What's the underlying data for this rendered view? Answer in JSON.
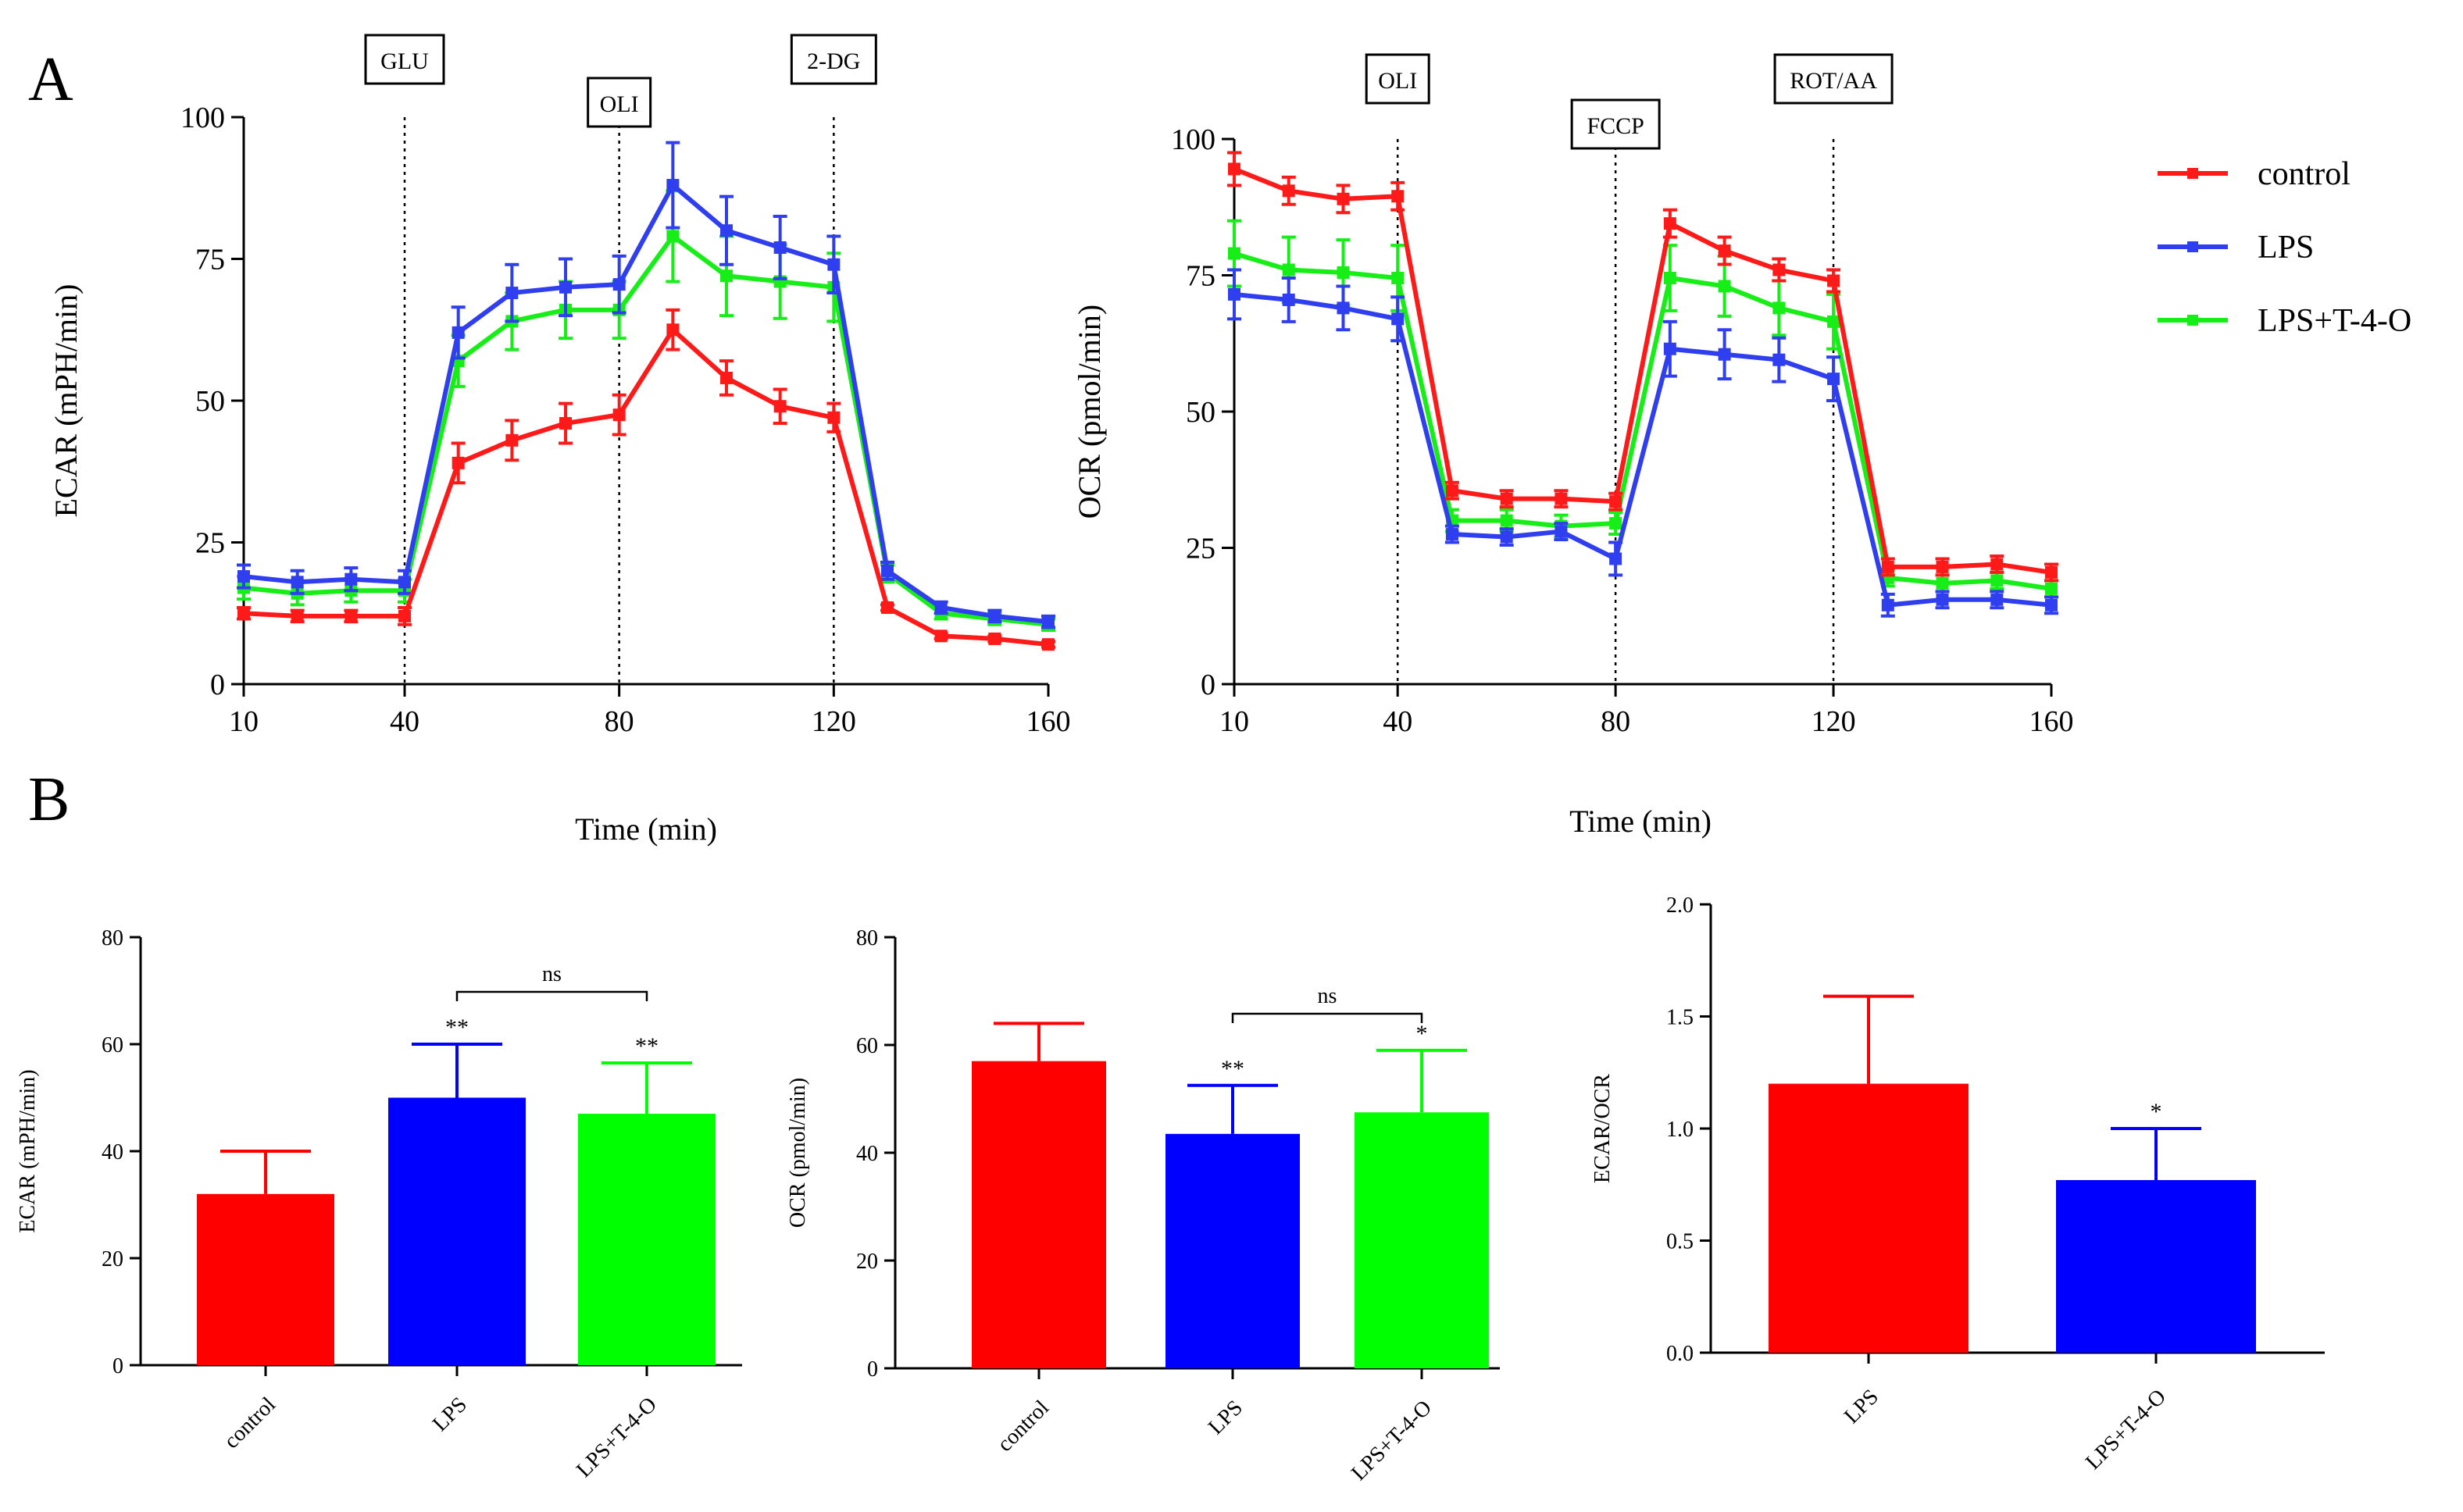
{
  "panel_labels": {
    "a": "A",
    "b": "B"
  },
  "series_names": [
    "control",
    "LPS",
    "LPS+T-4-O"
  ],
  "colors": {
    "control": "#ff1a1a",
    "LPS": "#2f3ff0",
    "LPS+T-4-O": "#17ee17",
    "bar_control": "#ff0000",
    "bar_lps": "#0000ff",
    "bar_t4o": "#00ff00",
    "axis": "#000000"
  },
  "chart_data": [
    {
      "id": "ecar_time",
      "type": "line",
      "ylabel": "ECAR (mPH/min)",
      "xlabel": "Time (min)",
      "x_ticks": [
        "10",
        "40",
        "80",
        "120",
        "160"
      ],
      "x_tick_values": [
        10,
        40,
        80,
        120,
        160
      ],
      "y_ticks": [
        "0",
        "25",
        "50",
        "75",
        "100"
      ],
      "y_tick_values": [
        0,
        25,
        50,
        75,
        100
      ],
      "xlim": [
        10,
        160
      ],
      "ylim": [
        0,
        100
      ],
      "injections": [
        {
          "x": 40,
          "label": "GLU"
        },
        {
          "x": 80,
          "label": "OLI"
        },
        {
          "x": 120,
          "label": "2-DG"
        }
      ],
      "x": [
        10,
        20,
        30,
        40,
        50,
        60,
        70,
        80,
        90,
        100,
        110,
        120,
        130,
        140,
        150,
        160
      ],
      "series": [
        {
          "name": "control",
          "values": [
            12.5,
            12,
            12,
            12,
            39,
            43,
            46,
            47.5,
            62.5,
            54,
            49,
            47,
            13.5,
            8.5,
            8,
            7
          ],
          "errors": [
            1,
            1,
            1,
            1.5,
            3.5,
            3.5,
            3.5,
            3.5,
            3.5,
            3,
            3,
            2.5,
            0.5,
            0.5,
            0.5,
            0.5
          ]
        },
        {
          "name": "LPS",
          "values": [
            19,
            18,
            18.5,
            18,
            62,
            69,
            70,
            70.5,
            88,
            80,
            77,
            74,
            20,
            13.5,
            12,
            11
          ],
          "errors": [
            2,
            2,
            2,
            2,
            4.5,
            5,
            5,
            5,
            7.5,
            6,
            5.5,
            5,
            1.5,
            1,
            1,
            1
          ]
        },
        {
          "name": "LPS+T-4-O",
          "values": [
            17,
            16,
            16.5,
            16.5,
            57,
            64,
            66,
            66,
            79,
            72,
            71,
            70,
            19.5,
            12.5,
            11.5,
            10.5
          ],
          "errors": [
            2,
            2,
            2,
            2,
            4.5,
            5,
            5,
            5,
            8,
            7,
            6.5,
            6,
            1.5,
            1,
            1,
            1
          ]
        }
      ]
    },
    {
      "id": "ocr_time",
      "type": "line",
      "ylabel": "OCR  (pmol/min)",
      "xlabel": "Time (min)",
      "x_ticks": [
        "10",
        "40",
        "80",
        "120",
        "160"
      ],
      "x_tick_values": [
        10,
        40,
        80,
        120,
        160
      ],
      "y_ticks": [
        "0",
        "25",
        "50",
        "75",
        "100"
      ],
      "y_tick_values": [
        0,
        25,
        50,
        75,
        100
      ],
      "xlim": [
        10,
        160
      ],
      "ylim": [
        0,
        100
      ],
      "injections": [
        {
          "x": 40,
          "label": "OLI"
        },
        {
          "x": 80,
          "label": "FCCP"
        },
        {
          "x": 120,
          "label": "ROT/AA"
        }
      ],
      "x": [
        10,
        20,
        30,
        40,
        50,
        60,
        70,
        80,
        90,
        100,
        110,
        120,
        130,
        140,
        150,
        160
      ],
      "series": [
        {
          "name": "control",
          "values": [
            94.5,
            90.5,
            89,
            89.5,
            35.5,
            34,
            34,
            33.5,
            84.5,
            79.5,
            76,
            74,
            21.5,
            21.5,
            22,
            20.5
          ],
          "errors": [
            3,
            2.5,
            2.5,
            2.5,
            1.5,
            1.5,
            1.5,
            1.5,
            2.5,
            2.5,
            2,
            2,
            1.5,
            1.5,
            1.5,
            1.5
          ]
        },
        {
          "name": "LPS",
          "values": [
            71.5,
            70.5,
            69,
            67,
            27.5,
            27,
            28,
            23,
            61.5,
            60.5,
            59.5,
            56,
            14.5,
            15.5,
            15.5,
            14.5
          ],
          "errors": [
            4.5,
            4,
            4,
            4,
            1.5,
            1.5,
            1.5,
            3,
            5,
            4.5,
            4,
            4,
            2,
            1.5,
            1.5,
            1.5
          ]
        },
        {
          "name": "LPS+T-4-O",
          "values": [
            79,
            76,
            75.5,
            74.5,
            30,
            30,
            29,
            29.5,
            74.5,
            73,
            69,
            66.5,
            19.5,
            18.5,
            19,
            17.5
          ],
          "errors": [
            6,
            6,
            6,
            6,
            2,
            2,
            2,
            2,
            6,
            5.5,
            5,
            5,
            1.5,
            1.5,
            1.5,
            1.5
          ]
        }
      ]
    },
    {
      "id": "ecar_bar",
      "type": "bar",
      "ylabel": "ECAR (mPH/min)",
      "categories": [
        "control",
        "LPS",
        "LPS+T-4-O"
      ],
      "values": [
        32,
        50,
        47
      ],
      "errors": [
        8,
        10,
        9.5
      ],
      "significance": [
        "",
        "**",
        "**"
      ],
      "bracket": {
        "from": 1,
        "to": 2,
        "label": "ns"
      },
      "y_ticks": [
        "0",
        "20",
        "40",
        "60",
        "80"
      ],
      "y_tick_values": [
        0,
        20,
        40,
        60,
        80
      ],
      "ylim": [
        0,
        80
      ]
    },
    {
      "id": "ocr_bar",
      "type": "bar",
      "ylabel": "OCR (pmol/min)",
      "categories": [
        "control",
        "LPS",
        "LPS+T-4-O"
      ],
      "values": [
        57,
        43.5,
        47.5
      ],
      "errors": [
        7,
        9,
        11.5
      ],
      "significance": [
        "",
        "**",
        "*"
      ],
      "bracket": {
        "from": 1,
        "to": 2,
        "label": "ns"
      },
      "y_ticks": [
        "0",
        "20",
        "40",
        "60",
        "80"
      ],
      "y_tick_values": [
        0,
        20,
        40,
        60,
        80
      ],
      "ylim": [
        0,
        80
      ]
    },
    {
      "id": "ratio_bar",
      "type": "bar",
      "ylabel": "ECAR/OCR",
      "categories": [
        "LPS",
        "LPS+T-4-O"
      ],
      "values": [
        1.2,
        0.77
      ],
      "errors": [
        0.39,
        0.23
      ],
      "significance": [
        "",
        "*"
      ],
      "y_ticks": [
        "0.0",
        "0.5",
        "1.0",
        "1.5",
        "2.0"
      ],
      "y_tick_values": [
        0,
        0.5,
        1.0,
        1.5,
        2.0
      ],
      "ylim": [
        0,
        2
      ]
    }
  ]
}
